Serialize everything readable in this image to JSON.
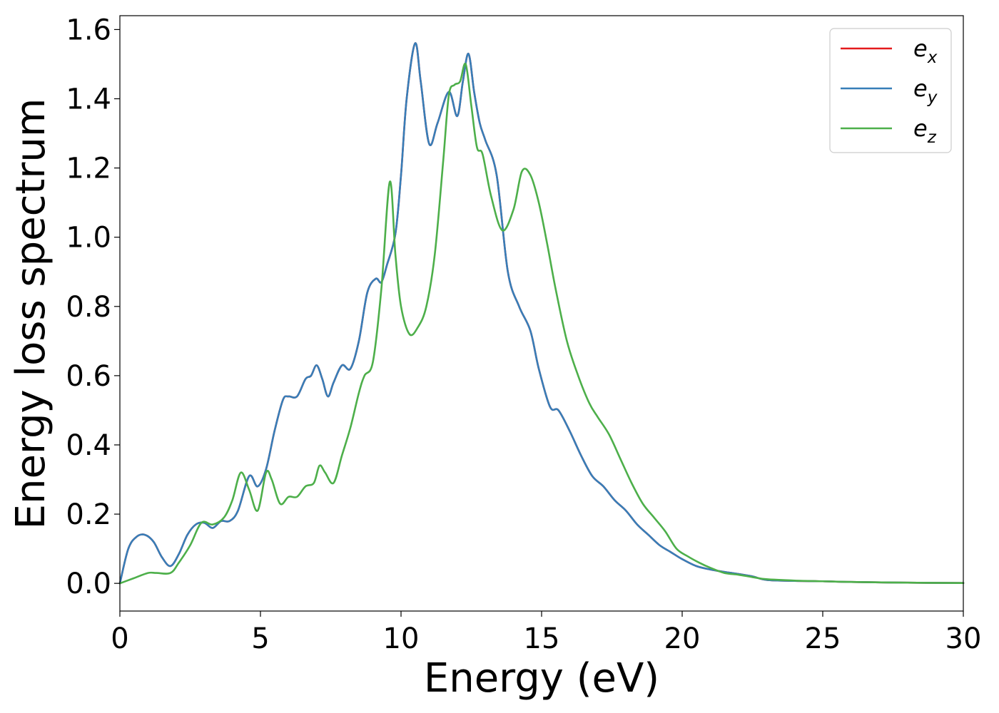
{
  "chart_data": {
    "type": "line",
    "title": "",
    "xlabel": "Energy (eV)",
    "ylabel": "Energy loss spectrum",
    "xlim": [
      0,
      30
    ],
    "ylim": [
      -0.08,
      1.64
    ],
    "xticks": [
      0,
      5,
      10,
      15,
      20,
      25,
      30
    ],
    "xtick_labels": [
      "0",
      "5",
      "10",
      "15",
      "20",
      "25",
      "30"
    ],
    "yticks": [
      0.0,
      0.2,
      0.4,
      0.6,
      0.8,
      1.0,
      1.2,
      1.4,
      1.6
    ],
    "ytick_labels": [
      "0.0",
      "0.2",
      "0.4",
      "0.6",
      "0.8",
      "1.0",
      "1.2",
      "1.4",
      "1.6"
    ],
    "grid": false,
    "legend_position": "top-right",
    "series": [
      {
        "name": "e_x",
        "legend_base": "e",
        "legend_sub": "x",
        "color": "#e41a1c",
        "x": [
          0,
          0.3,
          0.6,
          0.9,
          1.2,
          1.5,
          1.8,
          2.1,
          2.4,
          2.7,
          3.0,
          3.3,
          3.6,
          3.9,
          4.2,
          4.6,
          4.9,
          5.2,
          5.5,
          5.8,
          6.0,
          6.3,
          6.6,
          6.8,
          7.0,
          7.2,
          7.4,
          7.6,
          7.9,
          8.2,
          8.5,
          8.8,
          9.1,
          9.3,
          9.5,
          9.8,
          10.0,
          10.2,
          10.5,
          10.7,
          11.0,
          11.3,
          11.7,
          12.0,
          12.2,
          12.4,
          12.6,
          12.8,
          13.0,
          13.4,
          13.8,
          14.2,
          14.6,
          14.9,
          15.3,
          15.6,
          16.0,
          16.4,
          16.8,
          17.2,
          17.6,
          18.0,
          18.4,
          18.8,
          19.2,
          19.6,
          20.0,
          20.5,
          21.0,
          21.5,
          22.0,
          22.5,
          23.0,
          24.0,
          25.0,
          26.0,
          28.0,
          30.0
        ],
        "y": [
          0.0,
          0.1,
          0.135,
          0.14,
          0.12,
          0.075,
          0.05,
          0.085,
          0.14,
          0.17,
          0.175,
          0.16,
          0.18,
          0.18,
          0.21,
          0.31,
          0.28,
          0.33,
          0.44,
          0.53,
          0.54,
          0.54,
          0.59,
          0.6,
          0.63,
          0.59,
          0.54,
          0.58,
          0.63,
          0.62,
          0.7,
          0.84,
          0.88,
          0.87,
          0.92,
          1.01,
          1.18,
          1.4,
          1.56,
          1.45,
          1.27,
          1.33,
          1.42,
          1.35,
          1.45,
          1.53,
          1.42,
          1.33,
          1.28,
          1.18,
          0.9,
          0.8,
          0.73,
          0.62,
          0.51,
          0.5,
          0.44,
          0.37,
          0.31,
          0.28,
          0.24,
          0.21,
          0.17,
          0.14,
          0.11,
          0.09,
          0.07,
          0.05,
          0.04,
          0.033,
          0.027,
          0.02,
          0.01,
          0.007,
          0.006,
          0.004,
          0.002,
          0.001
        ]
      },
      {
        "name": "e_y",
        "legend_base": "e",
        "legend_sub": "y",
        "color": "#377eb8",
        "x": [
          0,
          0.3,
          0.6,
          0.9,
          1.2,
          1.5,
          1.8,
          2.1,
          2.4,
          2.7,
          3.0,
          3.3,
          3.6,
          3.9,
          4.2,
          4.6,
          4.9,
          5.2,
          5.5,
          5.8,
          6.0,
          6.3,
          6.6,
          6.8,
          7.0,
          7.2,
          7.4,
          7.6,
          7.9,
          8.2,
          8.5,
          8.8,
          9.1,
          9.3,
          9.5,
          9.8,
          10.0,
          10.2,
          10.5,
          10.7,
          11.0,
          11.3,
          11.7,
          12.0,
          12.2,
          12.4,
          12.6,
          12.8,
          13.0,
          13.4,
          13.8,
          14.2,
          14.6,
          14.9,
          15.3,
          15.6,
          16.0,
          16.4,
          16.8,
          17.2,
          17.6,
          18.0,
          18.4,
          18.8,
          19.2,
          19.6,
          20.0,
          20.5,
          21.0,
          21.5,
          22.0,
          22.5,
          23.0,
          24.0,
          25.0,
          26.0,
          28.0,
          30.0
        ],
        "y": [
          0.0,
          0.1,
          0.135,
          0.14,
          0.12,
          0.075,
          0.05,
          0.085,
          0.14,
          0.17,
          0.175,
          0.16,
          0.18,
          0.18,
          0.21,
          0.31,
          0.28,
          0.33,
          0.44,
          0.53,
          0.54,
          0.54,
          0.59,
          0.6,
          0.63,
          0.59,
          0.54,
          0.58,
          0.63,
          0.62,
          0.7,
          0.84,
          0.88,
          0.87,
          0.92,
          1.01,
          1.18,
          1.4,
          1.56,
          1.45,
          1.27,
          1.33,
          1.42,
          1.35,
          1.45,
          1.53,
          1.42,
          1.33,
          1.28,
          1.18,
          0.9,
          0.8,
          0.73,
          0.62,
          0.51,
          0.5,
          0.44,
          0.37,
          0.31,
          0.28,
          0.24,
          0.21,
          0.17,
          0.14,
          0.11,
          0.09,
          0.07,
          0.05,
          0.04,
          0.033,
          0.027,
          0.02,
          0.01,
          0.007,
          0.006,
          0.004,
          0.002,
          0.001
        ]
      },
      {
        "name": "e_z",
        "legend_base": "e",
        "legend_sub": "z",
        "color": "#4daf4a",
        "x": [
          0,
          0.5,
          1.0,
          1.3,
          1.8,
          2.1,
          2.5,
          2.9,
          3.3,
          3.7,
          4.0,
          4.3,
          4.6,
          4.9,
          5.2,
          5.4,
          5.7,
          6.0,
          6.3,
          6.6,
          6.9,
          7.1,
          7.3,
          7.6,
          7.9,
          8.2,
          8.5,
          8.7,
          9.0,
          9.3,
          9.6,
          9.8,
          10.0,
          10.3,
          10.6,
          10.9,
          11.2,
          11.5,
          11.7,
          11.9,
          12.1,
          12.3,
          12.5,
          12.7,
          12.9,
          13.2,
          13.6,
          14.0,
          14.3,
          14.6,
          14.9,
          15.2,
          15.5,
          15.9,
          16.3,
          16.7,
          17.0,
          17.4,
          17.8,
          18.2,
          18.6,
          19.0,
          19.4,
          19.8,
          20.2,
          20.6,
          21.0,
          21.5,
          22.0,
          22.5,
          23.0,
          24.0,
          25.0,
          26.0,
          28.0,
          30.0
        ],
        "y": [
          0.0,
          0.015,
          0.03,
          0.03,
          0.03,
          0.06,
          0.11,
          0.175,
          0.17,
          0.19,
          0.24,
          0.32,
          0.27,
          0.21,
          0.32,
          0.3,
          0.23,
          0.25,
          0.25,
          0.28,
          0.29,
          0.34,
          0.32,
          0.29,
          0.37,
          0.45,
          0.55,
          0.6,
          0.64,
          0.85,
          1.16,
          0.95,
          0.8,
          0.72,
          0.74,
          0.8,
          0.95,
          1.22,
          1.41,
          1.44,
          1.45,
          1.5,
          1.38,
          1.26,
          1.24,
          1.12,
          1.02,
          1.08,
          1.19,
          1.18,
          1.1,
          0.98,
          0.85,
          0.7,
          0.6,
          0.52,
          0.48,
          0.43,
          0.36,
          0.29,
          0.23,
          0.19,
          0.15,
          0.1,
          0.078,
          0.06,
          0.045,
          0.03,
          0.025,
          0.018,
          0.012,
          0.008,
          0.006,
          0.004,
          0.002,
          0.001
        ]
      }
    ]
  }
}
